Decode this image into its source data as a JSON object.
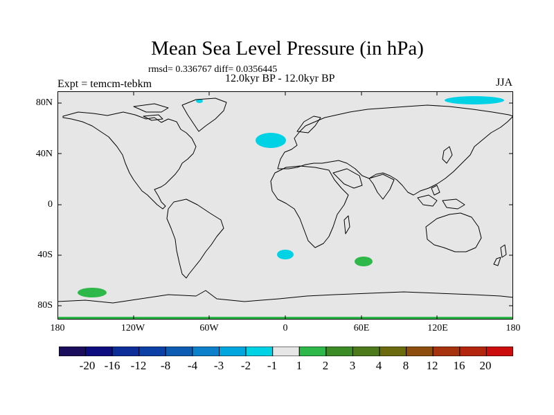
{
  "title": "Mean Sea Level Pressure (in hPa)",
  "stats": "rmsd= 0.336767 diff= 0.0356445",
  "period": "12.0kyr BP - 12.0kyr BP",
  "experiment": "Expt = temcm-tebkm",
  "season": "JJA",
  "map": {
    "background_color": "#e6e6e6",
    "lat_labels": [
      "80N",
      "40N",
      "0",
      "40S",
      "80S"
    ],
    "lon_labels": [
      "180",
      "120W",
      "60W",
      "0",
      "60E",
      "120E",
      "180"
    ],
    "anomaly_patches": [
      {
        "name": "greenland-cyan",
        "color": "#00d2e6",
        "bin": "-2 to -1"
      },
      {
        "name": "north-atlantic-cyan",
        "color": "#00d2e6",
        "bin": "-2 to -1"
      },
      {
        "name": "arctic-east-siberia-cyan",
        "color": "#00d2e6",
        "bin": "-2 to -1"
      },
      {
        "name": "south-atlantic-cyan",
        "color": "#00d2e6",
        "bin": "-2 to -1"
      },
      {
        "name": "southern-indian-ocean-green",
        "color": "#2eb84a",
        "bin": "1 to 2"
      },
      {
        "name": "southern-pacific-green",
        "color": "#2eb84a",
        "bin": "1 to 2"
      },
      {
        "name": "antarctic-coast-green",
        "color": "#2eb84a",
        "bin": "1 to 2"
      }
    ]
  },
  "colorbar": {
    "colors": [
      "#1a0d5c",
      "#0d0d80",
      "#0d2e99",
      "#0d40a6",
      "#0d5cb3",
      "#0d80cc",
      "#00a6dd",
      "#00d2e6",
      "#e6e6e6",
      "#2eb84a",
      "#3b8c26",
      "#4d7a1a",
      "#6b6b0d",
      "#8c4d0d",
      "#a6330d",
      "#b3260d",
      "#cc0d0d"
    ],
    "labels": [
      "-20",
      "-16",
      "-12",
      "-8",
      "-4",
      "-3",
      "-2",
      "-1",
      "1",
      "2",
      "3",
      "4",
      "8",
      "12",
      "16",
      "20"
    ]
  }
}
